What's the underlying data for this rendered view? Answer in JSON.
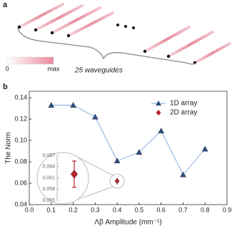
{
  "panel_a": {
    "label": "a",
    "colorbar": {
      "min": "0",
      "max": "max"
    },
    "caption": "25 waveguides"
  },
  "chart_data": {
    "type": "line",
    "panel_label": "b",
    "xlabel": "Λβ Amplitude (mm⁻¹)",
    "ylabel": "The Norm",
    "xlim": [
      0,
      0.9
    ],
    "xticks": [
      {
        "value": 0,
        "label": "0.0"
      },
      0.1,
      0.2,
      0.3,
      0.4,
      0.5,
      0.6,
      0.7,
      0.8,
      0.9
    ],
    "ylim": [
      0.04,
      0.146
    ],
    "yticks": [
      0.04,
      0.06,
      0.08,
      {
        "value": 0.1,
        "label": "0.10"
      },
      0.12,
      0.14
    ],
    "legend": "upper right",
    "series": [
      {
        "name": "1D array",
        "color": "#2e4f7f",
        "line_color": "#7fa8d8",
        "marker": "triangle",
        "x": [
          0.1,
          0.2,
          0.3,
          0.4,
          0.5,
          0.6,
          0.7,
          0.8
        ],
        "values": [
          0.133,
          0.133,
          0.122,
          0.081,
          0.089,
          0.109,
          0.068,
          0.092
        ]
      },
      {
        "name": "2D array",
        "color": "#b5262b",
        "marker": "diamond",
        "x": [
          0.4
        ],
        "values": [
          0.062
        ],
        "errors": [
          0.0035
        ]
      }
    ],
    "inset": {
      "ylim": [
        0.055,
        0.067
      ],
      "yticks": [
        0.067,
        0.064,
        0.061,
        0.058,
        0.055
      ]
    }
  }
}
